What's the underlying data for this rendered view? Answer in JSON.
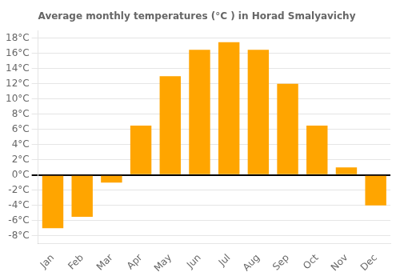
{
  "chart_data": {
    "type": "bar",
    "title": "Average monthly temperatures (°C ) in Horad Smalyavichy",
    "categories": [
      "Jan",
      "Feb",
      "Mar",
      "Apr",
      "May",
      "Jun",
      "Jul",
      "Aug",
      "Sep",
      "Oct",
      "Nov",
      "Dec"
    ],
    "values": [
      -7,
      -5.5,
      -1,
      6.5,
      13,
      16.5,
      17.5,
      16.5,
      12,
      6.5,
      1,
      -4
    ],
    "color": "#FFA500",
    "ylim": [
      -9,
      19
    ],
    "yticks": [
      {
        "value": -8,
        "label": "-8°C"
      },
      {
        "value": -6,
        "label": "-6°C"
      },
      {
        "value": -4,
        "label": "-4°C"
      },
      {
        "value": -2,
        "label": "-2°C"
      },
      {
        "value": 0,
        "label": "0°C"
      },
      {
        "value": 2,
        "label": "2°C"
      },
      {
        "value": 4,
        "label": "4°C"
      },
      {
        "value": 6,
        "label": "6°C"
      },
      {
        "value": 8,
        "label": "8°C"
      },
      {
        "value": 10,
        "label": "10°C"
      },
      {
        "value": 12,
        "label": "12°C"
      },
      {
        "value": 14,
        "label": "14°C"
      },
      {
        "value": 16,
        "label": "16°C"
      },
      {
        "value": 18,
        "label": "18°C"
      }
    ],
    "grid": true
  }
}
